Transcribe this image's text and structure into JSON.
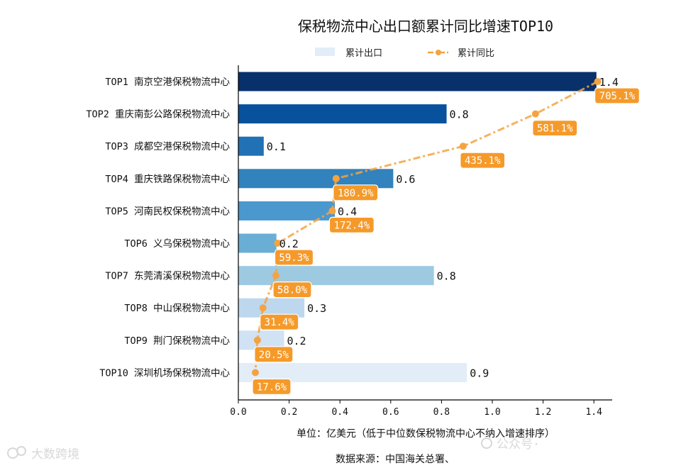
{
  "chart_data": {
    "type": "bar",
    "orientation": "horizontal",
    "title": "保税物流中心出口额累计同比增速TOP10",
    "legend": {
      "position": "top-center",
      "bar_label": "累计出口",
      "line_label": "累计同比"
    },
    "categories": [
      "TOP1 南京空港保税物流中心",
      "TOP2 重庆南彭公路保税物流中心",
      "TOP3 成都空港保税物流中心",
      "TOP4 重庆铁路保税物流中心",
      "TOP5 河南民权保税物流中心",
      "TOP6 义乌保税物流中心",
      "TOP7 东莞清溪保税物流中心",
      "TOP8 中山保税物流中心",
      "TOP9 荆门保税物流中心",
      "TOP10 深圳机场保税物流中心"
    ],
    "series": [
      {
        "name": "累计出口",
        "type": "bar",
        "values": [
          1.41,
          0.82,
          0.1,
          0.61,
          0.38,
          0.15,
          0.77,
          0.26,
          0.18,
          0.9
        ],
        "labels": [
          "1.4",
          "0.8",
          "0.1",
          "0.6",
          "0.4",
          "0.2",
          "0.8",
          "0.3",
          "0.2",
          "0.9"
        ],
        "colors": [
          "#08306b",
          "#08519c",
          "#2171b5",
          "#3182bd",
          "#4a98ce",
          "#6aaed6",
          "#9ecae1",
          "#bdd7ee",
          "#d0e2f3",
          "#e2edf8"
        ]
      },
      {
        "name": "累计同比",
        "type": "line",
        "values": [
          705.1,
          581.1,
          435.1,
          180.9,
          172.4,
          59.3,
          58.0,
          31.4,
          20.5,
          17.6
        ],
        "labels": [
          "705.1%",
          "581.1%",
          "435.1%",
          "180.9%",
          "172.4%",
          "59.3%",
          "58.0%",
          "31.4%",
          "20.5%",
          "17.6%"
        ],
        "color": "#f4a342"
      }
    ],
    "xlim": [
      0,
      1.5
    ],
    "xticks": [
      "0.0",
      "0.2",
      "0.4",
      "0.6",
      "0.8",
      "1.0",
      "1.2",
      "1.4"
    ],
    "xlabel": "单位：亿美元（低于中位数保税物流中心不纳入增速排序）",
    "source": "数据来源：中国海关总署、",
    "grid": false
  },
  "watermarks": {
    "left": "大数跨境",
    "right": "公众号·"
  },
  "colors": {
    "line": "#f4a342",
    "label_box": "#f59a2a",
    "axis": "#000000"
  }
}
